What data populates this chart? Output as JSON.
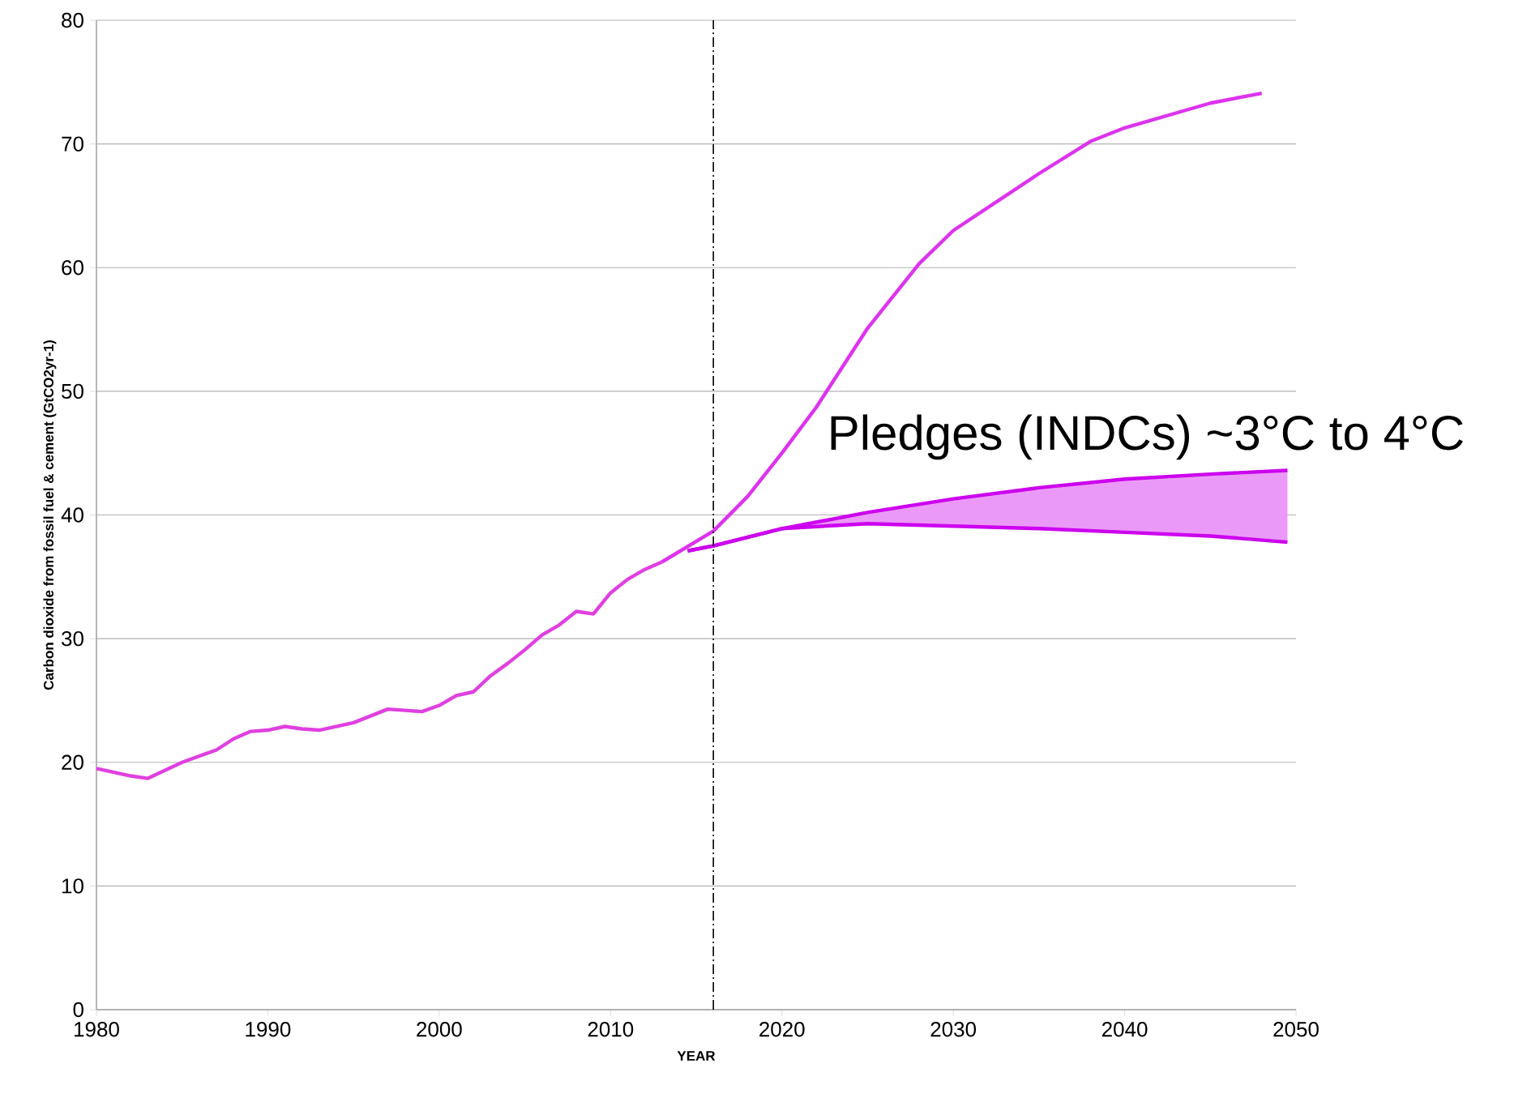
{
  "chart_data": {
    "type": "line",
    "xlabel": "YEAR",
    "ylabel": "Carbon dioxide from fossil fuel & cement (GtCO2yr-1)",
    "xlim": [
      1980,
      2050
    ],
    "ylim": [
      0,
      80
    ],
    "xticks": [
      1980,
      1990,
      2000,
      2010,
      2020,
      2030,
      2040,
      2050
    ],
    "yticks": [
      0,
      10,
      20,
      30,
      40,
      50,
      60,
      70,
      80
    ],
    "grid": "y",
    "series": [
      {
        "color": "#e040e0",
        "x": [
          1980,
          1982,
          1983,
          1985,
          1987,
          1988,
          1989,
          1990,
          1991,
          1992,
          1993,
          1995,
          1997,
          1999,
          2000,
          2001,
          2002,
          2003,
          2004,
          2005,
          2006,
          2007,
          2008,
          2009,
          2010,
          2011,
          2012,
          2013
        ],
        "values": [
          19.5,
          18.9,
          18.7,
          20,
          21,
          21.9,
          22.5,
          22.6,
          22.9,
          22.7,
          22.6,
          23.2,
          24.3,
          24.1,
          24.6,
          25.4,
          25.7,
          27,
          28,
          29.1,
          30.3,
          31.1,
          32.2,
          32,
          33.7,
          34.8,
          35.6,
          36.2
        ]
      },
      {
        "color": "#dd33ee",
        "x": [
          2013,
          2016,
          2018,
          2020,
          2022,
          2025,
          2028,
          2030,
          2035,
          2038,
          2040,
          2045,
          2048
        ],
        "values": [
          36.2,
          38.7,
          41.5,
          45,
          48.7,
          55.1,
          60.3,
          63,
          67.6,
          70.2,
          71.3,
          73.3,
          74.1
        ]
      },
      {
        "color": "#cc00ee",
        "x": [
          2014.5,
          2016,
          2020,
          2025,
          2030,
          2035,
          2040,
          2045,
          2049.5
        ],
        "values": [
          37.1,
          37.5,
          38.9,
          40.2,
          41.3,
          42.2,
          42.9,
          43.3,
          43.6
        ],
        "lower": [
          37.1,
          37.5,
          38.9,
          39.3,
          39.1,
          38.9,
          38.6,
          38.3,
          37.8
        ],
        "upper": [
          37.1,
          37.5,
          38.9,
          40.2,
          41.3,
          42.2,
          42.9,
          43.3,
          43.6
        ]
      },
      {
        "color": "#cc00ee",
        "x": [
          2014.5,
          2016,
          2020,
          2025,
          2030,
          2035,
          2040,
          2045,
          2049.5
        ],
        "values": [
          37.1,
          37.5,
          38.9,
          39.3,
          39.1,
          38.9,
          38.6,
          38.3,
          37.8
        ]
      }
    ],
    "ref_lines": [
      {
        "axis": "x",
        "value": 2016,
        "color": "#000000",
        "line_style": "dashdot"
      }
    ],
    "annotations": [
      "Pledges (INDCs)  ~3°C to 4°C"
    ]
  }
}
